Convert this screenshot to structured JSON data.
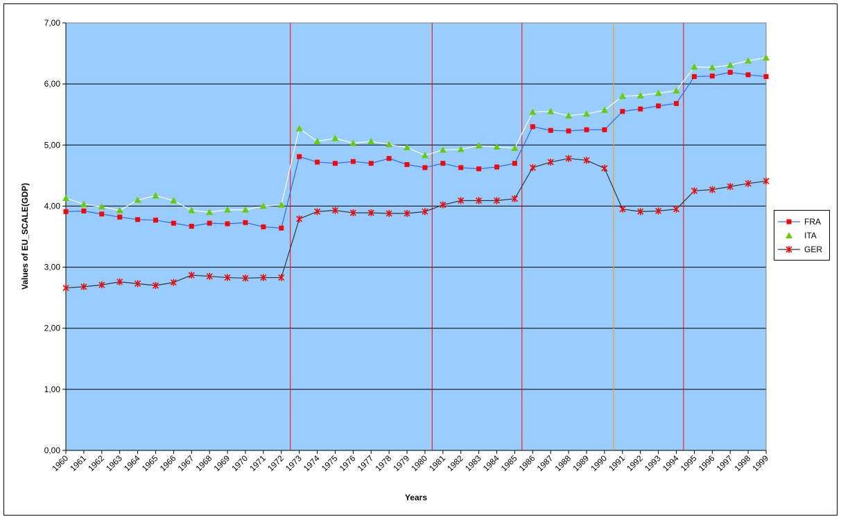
{
  "chart_data": {
    "type": "line",
    "y_label": "Values of EU_SCALE(GDP)",
    "x_label": "Years",
    "x": [
      1960,
      1961,
      1962,
      1963,
      1964,
      1965,
      1966,
      1967,
      1968,
      1969,
      1970,
      1971,
      1972,
      1973,
      1974,
      1975,
      1976,
      1977,
      1978,
      1979,
      1980,
      1981,
      1982,
      1983,
      1984,
      1985,
      1986,
      1987,
      1988,
      1989,
      1990,
      1991,
      1992,
      1993,
      1994,
      1995,
      1996,
      1997,
      1998,
      1999
    ],
    "xlim": [
      1960,
      1999
    ],
    "ylim": [
      0,
      7
    ],
    "yticks": [
      {
        "value": 0,
        "label": "0,00"
      },
      {
        "value": 1,
        "label": "1,00"
      },
      {
        "value": 2,
        "label": "2,00"
      },
      {
        "value": 3,
        "label": "3,00"
      },
      {
        "value": 4,
        "label": "4,00"
      },
      {
        "value": 5,
        "label": "5,00"
      },
      {
        "value": 6,
        "label": "6,00"
      },
      {
        "value": 7,
        "label": "7,00"
      }
    ],
    "grid": true,
    "background": "#99ccff",
    "legend": "right",
    "series": [
      {
        "name": "FRA",
        "color": "#3366ff",
        "marker": "square",
        "marker_color": "#ff0000",
        "values": [
          3.91,
          3.92,
          3.87,
          3.82,
          3.78,
          3.77,
          3.72,
          3.67,
          3.72,
          3.71,
          3.73,
          3.66,
          3.64,
          4.81,
          4.72,
          4.7,
          4.73,
          4.7,
          4.78,
          4.68,
          4.63,
          4.7,
          4.63,
          4.61,
          4.64,
          4.7,
          5.3,
          5.24,
          5.23,
          5.25,
          5.25,
          5.55,
          5.59,
          5.64,
          5.68,
          6.12,
          6.13,
          6.19,
          6.15,
          6.12
        ]
      },
      {
        "name": "ITA",
        "color": "#ffffff",
        "marker": "triangle",
        "marker_color": "#66cc00",
        "values": [
          4.13,
          4.03,
          3.99,
          3.93,
          4.1,
          4.17,
          4.09,
          3.93,
          3.9,
          3.94,
          3.94,
          4.0,
          4.02,
          5.27,
          5.06,
          5.11,
          5.03,
          5.06,
          5.01,
          4.96,
          4.83,
          4.92,
          4.93,
          4.99,
          4.97,
          4.95,
          5.54,
          5.55,
          5.48,
          5.51,
          5.57,
          5.8,
          5.81,
          5.85,
          5.89,
          6.28,
          6.27,
          6.31,
          6.38,
          6.43
        ]
      },
      {
        "name": "GER",
        "color": "#333333",
        "marker": "star",
        "marker_color": "#ff0000",
        "values": [
          2.66,
          2.68,
          2.71,
          2.76,
          2.73,
          2.7,
          2.75,
          2.87,
          2.85,
          2.83,
          2.82,
          2.83,
          2.83,
          3.79,
          3.91,
          3.93,
          3.89,
          3.89,
          3.88,
          3.88,
          3.91,
          4.02,
          4.09,
          4.09,
          4.09,
          4.12,
          4.63,
          4.72,
          4.78,
          4.75,
          4.62,
          3.95,
          3.91,
          3.92,
          3.95,
          4.25,
          4.27,
          4.32,
          4.37,
          4.41
        ]
      }
    ],
    "vlines": [
      {
        "x": 1972.5,
        "color": "#ff0000"
      },
      {
        "x": 1980.4,
        "color": "#ff0000"
      },
      {
        "x": 1985.4,
        "color": "#ff0000"
      },
      {
        "x": 1990.5,
        "color": "#ff9900"
      },
      {
        "x": 1994.4,
        "color": "#ff0000"
      }
    ]
  }
}
